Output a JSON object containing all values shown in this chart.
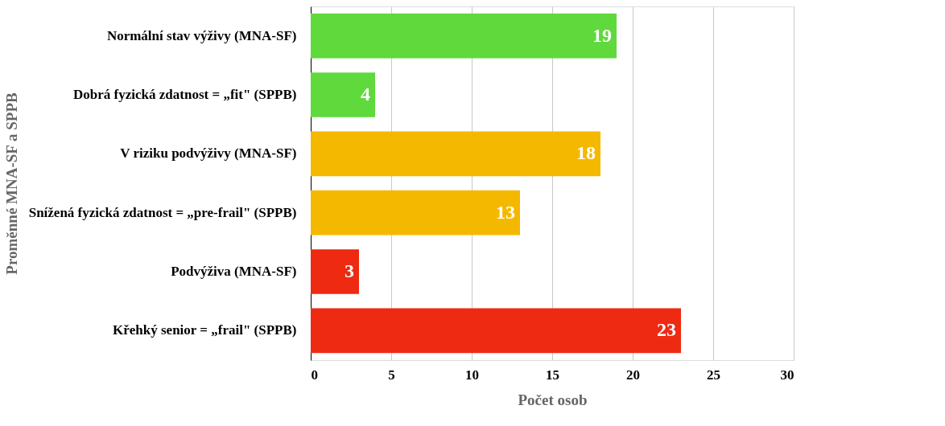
{
  "chart_data": {
    "type": "bar",
    "orientation": "horizontal",
    "xlabel": "Počet osob",
    "ylabel": "Proměnné MNA-SF a SPPB",
    "categories": [
      "Normální stav výživy (MNA-SF)",
      "Dobrá fyzická zdatnost = „fit\" (SPPB)",
      "V riziku podvýživy (MNA-SF)",
      "Snížená fyzická zdatnost = „pre-frail\" (SPPB)",
      "Podvýživa (MNA-SF)",
      "Křehký senior = „frail\" (SPPB)"
    ],
    "values": [
      19,
      4,
      18,
      13,
      3,
      23
    ],
    "colors": [
      "#5fd93c",
      "#5fd93c",
      "#f5b800",
      "#f5b800",
      "#ee2a12",
      "#ee2a12"
    ],
    "xlim": [
      0,
      30
    ],
    "xticks": [
      0,
      5,
      10,
      15,
      20,
      25,
      30
    ],
    "grid": "x",
    "data_labels": true
  }
}
